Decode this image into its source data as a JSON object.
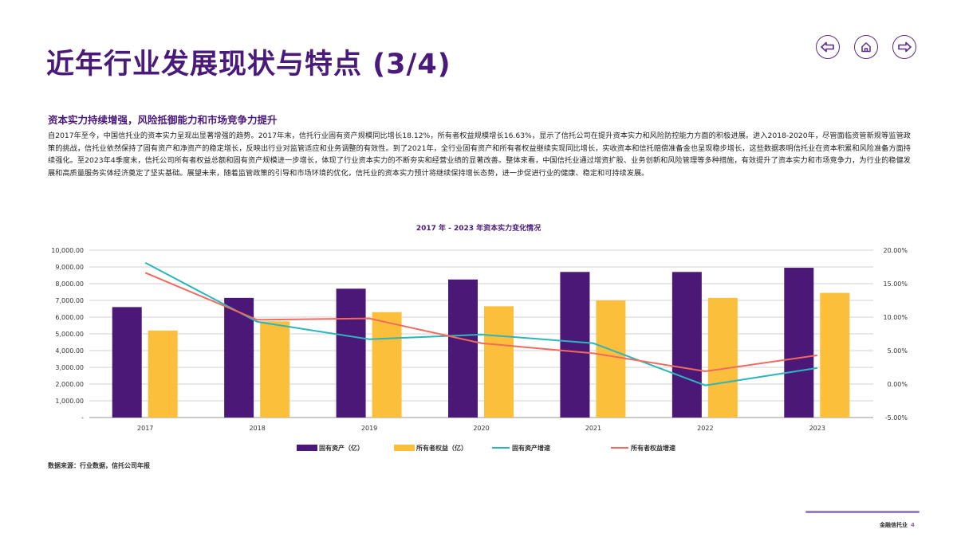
{
  "header": {
    "title": "近年行业发展现状与特点 (3/4)",
    "nav": [
      {
        "icon": "arrow-left-icon"
      },
      {
        "icon": "home-icon"
      },
      {
        "icon": "arrow-right-icon"
      }
    ]
  },
  "section": {
    "subtitle": "资本实力持续增强，风险抵御能力和市场竞争力提升",
    "paragraph": "自2017年至今，中国信托业的资本实力呈现出显著增强的趋势。2017年末，信托行业固有资产规模同比增长18.12%，所有者权益规模增长16.63%，显示了信托公司在提升资本实力和风险防控能力方面的积极进展。进入2018-2020年，尽管面临资管新规等监管政策的挑战，信托业依然保持了固有资产和净资产的稳定增长，反映出行业对监管适应和业务调整的有效性。到了2021年，全行业固有资产和所有者权益继续实现同比增长，实收资本和信托赔偿准备金也呈现稳步增长，这些数据表明信托业在资本积累和风险准备方面持续强化。至2023年4季度末，信托公司所有者权益总额和固有资产规模进一步增长，体现了行业资本实力的不断夯实和经营业绩的显著改善。整体来看，中国信托业通过增资扩股、业务创新和风险管理等多种措施，有效提升了资本实力和市场竞争力，为行业的稳健发展和高质量服务实体经济奠定了坚实基础。展望未来，随着监管政策的引导和市场环境的优化，信托业的资本实力预计将继续保持增长态势，进一步促进行业的健康、稳定和可持续发展。"
  },
  "chart_data": {
    "type": "bar+line",
    "title": "2017 年 - 2023 年资本实力变化情况",
    "categories": [
      "2017",
      "2018",
      "2019",
      "2020",
      "2021",
      "2022",
      "2023"
    ],
    "series": [
      {
        "name": "固有资产（亿）",
        "type": "bar",
        "axis": "left",
        "color": "#4b1877",
        "values": [
          6600,
          7150,
          7700,
          8250,
          8700,
          8700,
          8950
        ]
      },
      {
        "name": "所有者权益（亿）",
        "type": "bar",
        "axis": "left",
        "color": "#fbbf3b",
        "values": [
          5200,
          5750,
          6300,
          6650,
          7000,
          7150,
          7450
        ]
      },
      {
        "name": "固有资产增速",
        "type": "line",
        "axis": "right",
        "color": "#2bb5bd",
        "values": [
          18.12,
          9.3,
          6.7,
          7.4,
          6.1,
          -0.2,
          2.4
        ]
      },
      {
        "name": "所有者权益增速",
        "type": "line",
        "axis": "right",
        "color": "#f26a5e",
        "values": [
          16.63,
          9.6,
          9.8,
          6.1,
          4.6,
          1.9,
          4.3
        ]
      }
    ],
    "left_axis": {
      "range": [
        0,
        10000
      ],
      "ticks": [
        "-",
        "1,000.00",
        "2,000.00",
        "3,000.00",
        "4,000.00",
        "5,000.00",
        "6,000.00",
        "7,000.00",
        "8,000.00",
        "9,000.00",
        "10,000.00"
      ]
    },
    "right_axis": {
      "range": [
        -5,
        20
      ],
      "ticks": [
        "-5.00%",
        "0.00%",
        "5.00%",
        "10.00%",
        "15.00%",
        "20.00%"
      ]
    },
    "grid": true,
    "legend": "bottom"
  },
  "source": "数据来源：行业数据，信托公司年报",
  "footer": {
    "brand": "金融信托业",
    "page": "4"
  }
}
